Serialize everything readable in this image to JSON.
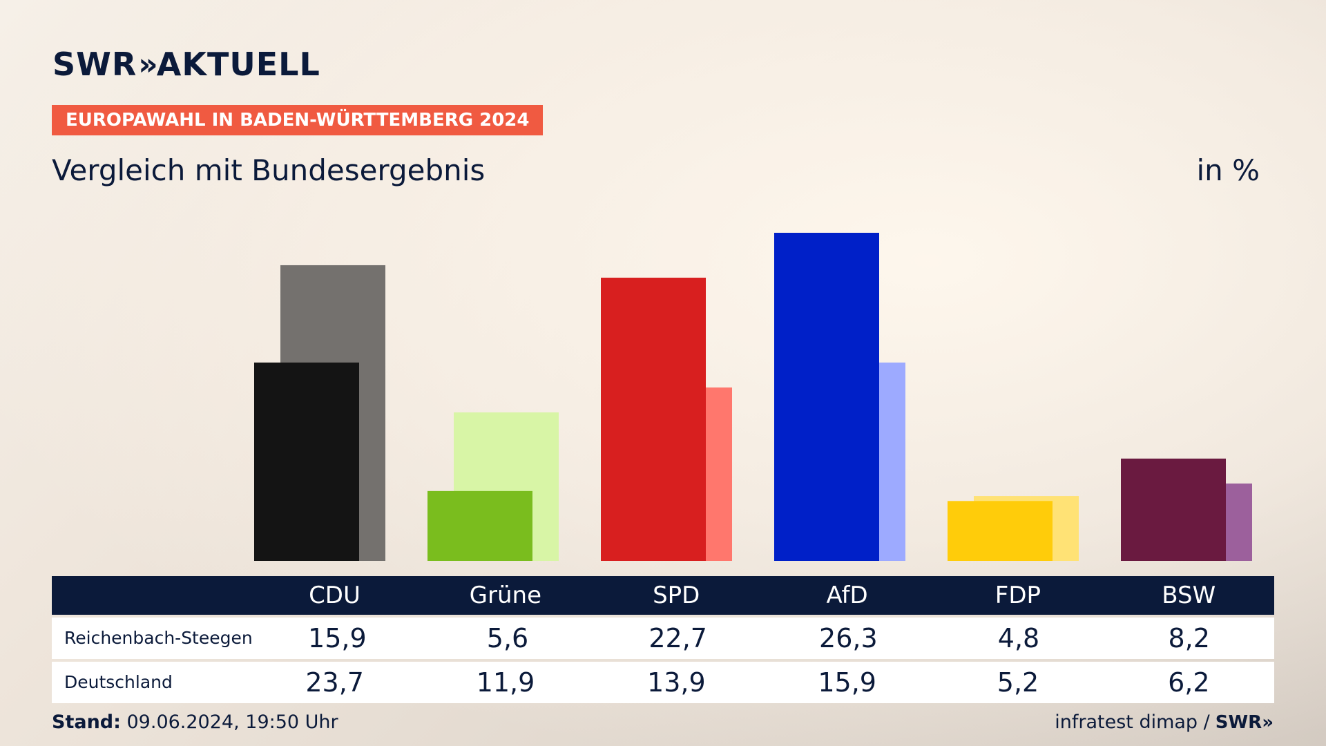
{
  "header": {
    "logo_main": "SWR",
    "logo_chevrons": "»",
    "logo_suffix": "AKTUELL",
    "badge": "EUROPAWAHL IN BADEN-WÜRTTEMBERG 2024",
    "subtitle": "Vergleich mit Bundesergebnis",
    "unit": "in %"
  },
  "chart_data": {
    "type": "bar",
    "title": "Vergleich mit Bundesergebnis",
    "categories": [
      "CDU",
      "Grüne",
      "SPD",
      "AfD",
      "FDP",
      "BSW"
    ],
    "series": [
      {
        "name": "Reichenbach-Steegen",
        "values": [
          15.9,
          5.6,
          22.7,
          26.3,
          4.8,
          8.2
        ],
        "colors": [
          "#141414",
          "#7abd1e",
          "#d81f1f",
          "#0020c8",
          "#ffcc0a",
          "#6a1a40"
        ]
      },
      {
        "name": "Deutschland",
        "values": [
          23.7,
          11.9,
          13.9,
          15.9,
          5.2,
          6.2
        ],
        "colors": [
          "#74716e",
          "#d8f5a6",
          "#ff776d",
          "#9daaff",
          "#ffe275",
          "#9c609c"
        ]
      }
    ],
    "ylim": [
      0,
      26.3
    ],
    "grid": false,
    "legend": "table below chart"
  },
  "table": {
    "headers": [
      "CDU",
      "Grüne",
      "SPD",
      "AfD",
      "FDP",
      "BSW"
    ],
    "rows": [
      {
        "label": "Reichenbach-Steegen",
        "values": [
          "15,9",
          "5,6",
          "22,7",
          "26,3",
          "4,8",
          "8,2"
        ]
      },
      {
        "label": "Deutschland",
        "values": [
          "23,7",
          "11,9",
          "13,9",
          "15,9",
          "5,2",
          "6,2"
        ]
      }
    ]
  },
  "footer": {
    "stand_label": "Stand:",
    "stand_value": " 09.06.2024, 19:50 Uhr",
    "source": "infratest dimap / ",
    "source_logo": "SWR»"
  }
}
